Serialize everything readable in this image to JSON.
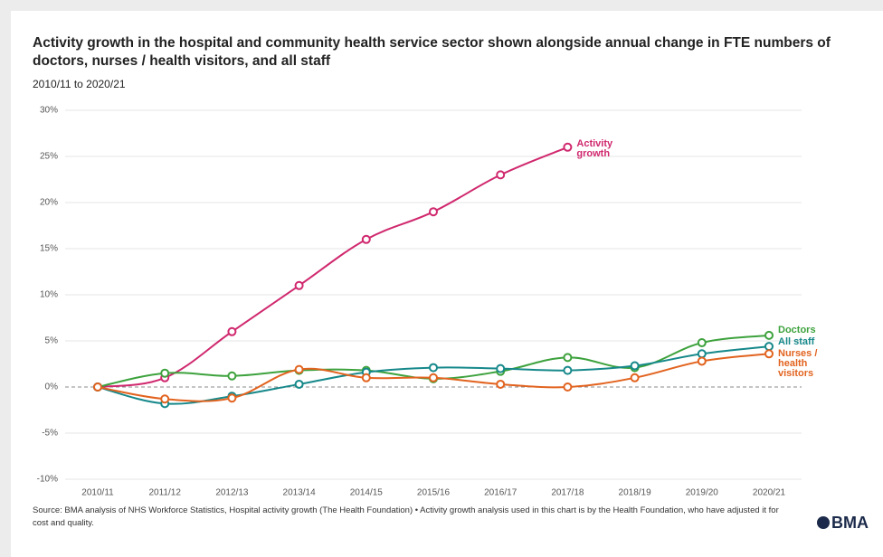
{
  "title": "Activity growth in the hospital and community health service sector shown alongside annual change in FTE numbers of doctors, nurses / health visitors, and all staff",
  "subtitle": "2010/11 to 2020/21",
  "source": "Source: BMA analysis of NHS Workforce Statistics, Hospital activity growth (The Health Foundation) • Activity growth analysis used in this chart is by the Health Foundation, who have adjusted it for cost and quality.",
  "brand": "BMA",
  "chart_data": {
    "type": "line",
    "categories": [
      "2010/11",
      "2011/12",
      "2012/13",
      "2013/14",
      "2014/15",
      "2015/16",
      "2016/17",
      "2017/18",
      "2018/19",
      "2019/20",
      "2020/21"
    ],
    "series": [
      {
        "name": "Activity growth",
        "color": "#d0286e",
        "values": [
          0,
          1,
          6,
          11,
          16,
          19,
          23,
          26,
          null,
          null,
          null
        ]
      },
      {
        "name": "Doctors",
        "color": "#3da23d",
        "values": [
          0,
          1.5,
          1.2,
          1.8,
          1.8,
          0.9,
          1.7,
          3.2,
          2.1,
          4.8,
          5.6
        ]
      },
      {
        "name": "All staff",
        "color": "#16888a",
        "values": [
          0,
          -1.8,
          -1.0,
          0.3,
          1.6,
          2.1,
          2.0,
          1.8,
          2.3,
          3.6,
          4.4
        ]
      },
      {
        "name": "Nurses / health visitors",
        "color": "#e2631f",
        "values": [
          0,
          -1.3,
          -1.2,
          1.9,
          1.0,
          1.0,
          0.3,
          0.0,
          1.0,
          2.8,
          3.6
        ]
      }
    ],
    "ylim": [
      -10,
      30
    ],
    "yticks": [
      {
        "value": -10,
        "label": "-10%"
      },
      {
        "value": -5,
        "label": "-5%"
      },
      {
        "value": 0,
        "label": "0%"
      },
      {
        "value": 5,
        "label": "5%"
      },
      {
        "value": 10,
        "label": "10%"
      },
      {
        "value": 15,
        "label": "15%"
      },
      {
        "value": 20,
        "label": "20%"
      },
      {
        "value": 25,
        "label": "25%"
      },
      {
        "value": 30,
        "label": "30%"
      }
    ],
    "grid": true
  }
}
